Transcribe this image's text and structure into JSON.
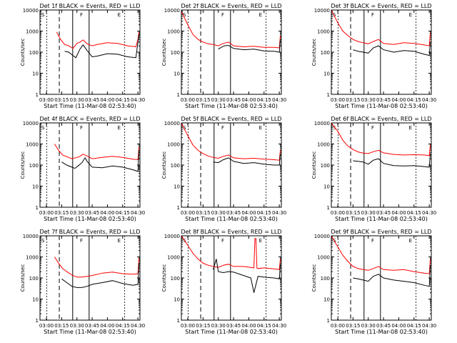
{
  "chart_data": [
    {
      "type": "line",
      "title": "Det 1f BLACK = Events, RED = LLD",
      "ylabel": "Counts/sec",
      "xlabel": "Start Time (11-Mar-08 02:53:40)",
      "ylim": [
        1,
        10000
      ],
      "yscale": "log",
      "xlim": [
        "02:53:40",
        "04:32:00"
      ],
      "xticks": [
        "03:00",
        "03:15",
        "03:30",
        "03:45",
        "04:00",
        "04:15",
        "04:30"
      ],
      "yticks": [
        "1",
        "10",
        "100",
        "1000",
        "10000"
      ],
      "markers": [
        {
          "label": "S",
          "time": "02:53:40"
        },
        {
          "label": "F",
          "time": "03:33:00"
        },
        {
          "label": "E",
          "time": "04:10:00"
        }
      ],
      "series": [
        {
          "color": "#ff0000",
          "x": [
            "03:10",
            "03:14",
            "03:18",
            "03:22",
            "03:26",
            "03:30",
            "03:33",
            "03:36",
            "03:40",
            "03:45",
            "03:50",
            "04:00",
            "04:10",
            "04:20",
            "04:28",
            "04:30",
            "04:31"
          ],
          "y": [
            900,
            400,
            230,
            200,
            150,
            260,
            300,
            380,
            250,
            200,
            230,
            280,
            260,
            200,
            180,
            400,
            900
          ]
        },
        {
          "color": "#000000",
          "x": [
            "03:18",
            "03:22",
            "03:26",
            "03:29",
            "03:33",
            "03:36",
            "03:40",
            "03:45",
            "03:50",
            "04:00",
            "04:10",
            "04:20",
            "04:28",
            "04:30",
            "04:31"
          ],
          "y": [
            110,
            100,
            70,
            55,
            140,
            220,
            120,
            60,
            65,
            85,
            80,
            60,
            55,
            300,
            700
          ]
        }
      ]
    },
    {
      "type": "line",
      "title": "Det 2f BLACK = Events, RED = LLD",
      "ylabel": "Counts/sec",
      "xlabel": "Start Time (11-Mar-08 02:53:40)",
      "ylim": [
        1,
        10000
      ],
      "yscale": "log",
      "xlim": [
        "02:53:40",
        "04:32:00"
      ],
      "xticks": [
        "03:00",
        "03:15",
        "03:30",
        "03:45",
        "04:00",
        "04:15",
        "04:30"
      ],
      "yticks": [
        "1",
        "10",
        "100",
        "1000",
        "10000"
      ],
      "markers": [
        {
          "label": "S",
          "time": "02:53:40"
        },
        {
          "label": "F",
          "time": "03:33:00"
        },
        {
          "label": "E",
          "time": "04:10:00"
        }
      ],
      "series": [
        {
          "color": "#ff0000",
          "x": [
            "02:54",
            "03:00",
            "03:05",
            "03:10",
            "03:15",
            "03:20",
            "03:25",
            "03:30",
            "03:35",
            "03:40",
            "03:45",
            "03:55",
            "04:05",
            "04:15",
            "04:25",
            "04:30",
            "04:31"
          ],
          "y": [
            8000,
            2000,
            700,
            400,
            300,
            250,
            230,
            200,
            260,
            300,
            200,
            180,
            190,
            170,
            170,
            160,
            600
          ]
        },
        {
          "color": "#000000",
          "x": [
            "03:30",
            "03:33",
            "03:36",
            "03:40",
            "03:45",
            "03:55",
            "04:05",
            "04:15",
            "04:25",
            "04:30",
            "04:31"
          ],
          "y": [
            140,
            170,
            200,
            210,
            150,
            130,
            140,
            115,
            110,
            100,
            400
          ]
        }
      ]
    },
    {
      "type": "line",
      "title": "Det 3f BLACK = Events, RED = LLD",
      "ylabel": "Counts/sec",
      "xlabel": "Start Time (11-Mar-08 02:53:40)",
      "ylim": [
        1,
        10000
      ],
      "yscale": "log",
      "xlim": [
        "02:53:40",
        "04:32:00"
      ],
      "xticks": [
        "03:00",
        "03:15",
        "03:30",
        "03:45",
        "04:00",
        "04:15",
        "04:30"
      ],
      "yticks": [
        "1",
        "10",
        "100",
        "1000",
        "10000"
      ],
      "markers": [
        {
          "label": "S",
          "time": "02:53:40"
        },
        {
          "label": "F",
          "time": "03:33:00"
        },
        {
          "label": "E",
          "time": "04:10:00"
        }
      ],
      "series": [
        {
          "color": "#ff0000",
          "x": [
            "02:54",
            "03:00",
            "03:05",
            "03:10",
            "03:15",
            "03:20",
            "03:25",
            "03:30",
            "03:35",
            "03:40",
            "03:45",
            "03:55",
            "04:05",
            "04:15",
            "04:25",
            "04:30",
            "04:31"
          ],
          "y": [
            9000,
            2500,
            1000,
            600,
            400,
            320,
            280,
            250,
            320,
            400,
            260,
            230,
            280,
            260,
            220,
            200,
            800
          ]
        },
        {
          "color": "#000000",
          "x": [
            "03:15",
            "03:20",
            "03:25",
            "03:30",
            "03:35",
            "03:40",
            "03:45",
            "03:55",
            "04:05",
            "04:15",
            "04:25",
            "04:30",
            "04:31"
          ],
          "y": [
            130,
            110,
            100,
            90,
            160,
            200,
            130,
            100,
            120,
            110,
            80,
            70,
            300
          ]
        }
      ]
    },
    {
      "type": "line",
      "title": "Det 4f BLACK = Events, RED = LLD",
      "ylabel": "Counts/sec",
      "xlabel": "Start Time (11-Mar-08 02:53:40)",
      "ylim": [
        1,
        10000
      ],
      "yscale": "log",
      "xlim": [
        "02:53:40",
        "04:32:00"
      ],
      "xticks": [
        "03:00",
        "03:15",
        "03:30",
        "03:45",
        "04:00",
        "04:15",
        "04:30"
      ],
      "yticks": [
        "1",
        "10",
        "100",
        "1000",
        "10000"
      ],
      "markers": [
        {
          "label": "S",
          "time": "02:53:40"
        },
        {
          "label": "F",
          "time": "03:33:00"
        },
        {
          "label": "E",
          "time": "04:10:00"
        }
      ],
      "series": [
        {
          "color": "#ff0000",
          "x": [
            "03:08",
            "03:12",
            "03:16",
            "03:20",
            "03:25",
            "03:30",
            "03:33",
            "03:36",
            "03:40",
            "03:45",
            "03:55",
            "04:05",
            "04:15",
            "04:25",
            "04:30",
            "04:31"
          ],
          "y": [
            1000,
            500,
            300,
            250,
            200,
            230,
            260,
            330,
            270,
            200,
            230,
            260,
            230,
            190,
            180,
            700
          ]
        },
        {
          "color": "#000000",
          "x": [
            "03:15",
            "03:20",
            "03:25",
            "03:28",
            "03:31",
            "03:35",
            "03:38",
            "03:40",
            "03:45",
            "03:55",
            "04:05",
            "04:15",
            "04:25",
            "04:30",
            "04:31"
          ],
          "y": [
            140,
            100,
            80,
            70,
            90,
            130,
            220,
            150,
            80,
            75,
            90,
            80,
            60,
            50,
            500
          ]
        }
      ]
    },
    {
      "type": "line",
      "title": "Det 5f BLACK = Events, RED = LLD",
      "ylabel": "Counts/sec",
      "xlabel": "Start Time (11-Mar-08 02:53:40)",
      "ylim": [
        1,
        10000
      ],
      "yscale": "log",
      "xlim": [
        "02:53:40",
        "04:32:00"
      ],
      "xticks": [
        "03:00",
        "03:15",
        "03:30",
        "03:45",
        "04:00",
        "04:15",
        "04:30"
      ],
      "yticks": [
        "1",
        "10",
        "100",
        "1000",
        "10000"
      ],
      "markers": [
        {
          "label": "S",
          "time": "02:53:40"
        },
        {
          "label": "F",
          "time": "03:33:00"
        },
        {
          "label": "E",
          "time": "04:10:00"
        }
      ],
      "series": [
        {
          "color": "#ff0000",
          "x": [
            "02:54",
            "03:00",
            "03:05",
            "03:10",
            "03:15",
            "03:20",
            "03:25",
            "03:30",
            "03:35",
            "03:40",
            "03:45",
            "03:55",
            "04:05",
            "04:15",
            "04:25",
            "04:30",
            "04:31"
          ],
          "y": [
            9000,
            2500,
            900,
            500,
            350,
            270,
            230,
            210,
            260,
            300,
            220,
            200,
            210,
            190,
            180,
            170,
            500
          ]
        },
        {
          "color": "#000000",
          "x": [
            "03:25",
            "03:30",
            "03:35",
            "03:40",
            "03:45",
            "03:55",
            "04:05",
            "04:15",
            "04:25",
            "04:30",
            "04:31"
          ],
          "y": [
            140,
            130,
            180,
            220,
            150,
            120,
            130,
            110,
            100,
            100,
            350
          ]
        }
      ]
    },
    {
      "type": "line",
      "title": "Det 6f BLACK = Events, RED = LLD",
      "ylabel": "Counts/sec",
      "xlabel": "Start Time (11-Mar-08 02:53:40)",
      "ylim": [
        1,
        10000
      ],
      "yscale": "log",
      "xlim": [
        "02:53:40",
        "04:32:00"
      ],
      "xticks": [
        "03:00",
        "03:15",
        "03:30",
        "03:45",
        "04:00",
        "04:15",
        "04:30"
      ],
      "yticks": [
        "1",
        "10",
        "100",
        "1000",
        "10000"
      ],
      "markers": [
        {
          "label": "S",
          "time": "02:53:40"
        },
        {
          "label": "F",
          "time": "03:33:00"
        },
        {
          "label": "E",
          "time": "04:10:00"
        }
      ],
      "series": [
        {
          "color": "#ff0000",
          "x": [
            "02:54",
            "03:00",
            "03:05",
            "03:10",
            "03:15",
            "03:20",
            "03:25",
            "03:30",
            "03:35",
            "03:40",
            "03:45",
            "03:55",
            "04:05",
            "04:15",
            "04:25",
            "04:30",
            "04:31"
          ],
          "y": [
            9500,
            4000,
            1500,
            800,
            550,
            420,
            370,
            350,
            430,
            500,
            380,
            320,
            300,
            310,
            300,
            280,
            900
          ]
        },
        {
          "color": "#000000",
          "x": [
            "03:15",
            "03:20",
            "03:25",
            "03:30",
            "03:35",
            "03:40",
            "03:45",
            "03:55",
            "04:05",
            "04:15",
            "04:25",
            "04:30",
            "04:31"
          ],
          "y": [
            160,
            150,
            140,
            110,
            170,
            200,
            120,
            95,
            90,
            95,
            85,
            80,
            350
          ]
        }
      ]
    },
    {
      "type": "line",
      "title": "Det 7f BLACK = Events, RED = LLD",
      "ylabel": "Counts/sec",
      "xlabel": "Start Time (11-Mar-08 02:53:40)",
      "ylim": [
        1,
        10000
      ],
      "yscale": "log",
      "xlim": [
        "02:53:40",
        "04:32:00"
      ],
      "xticks": [
        "03:00",
        "03:15",
        "03:30",
        "03:45",
        "04:00",
        "04:15",
        "04:30"
      ],
      "yticks": [
        "1",
        "10",
        "100",
        "1000",
        "10000"
      ],
      "markers": [
        {
          "label": "S",
          "time": "02:53:40"
        },
        {
          "label": "F",
          "time": "03:33:00"
        },
        {
          "label": "E",
          "time": "04:10:00"
        }
      ],
      "series": [
        {
          "color": "#ff0000",
          "x": [
            "03:08",
            "03:12",
            "03:16",
            "03:20",
            "03:25",
            "03:30",
            "03:35",
            "03:40",
            "03:45",
            "03:55",
            "04:05",
            "04:15",
            "04:25",
            "04:30",
            "04:31"
          ],
          "y": [
            1000,
            500,
            280,
            200,
            140,
            110,
            110,
            120,
            130,
            170,
            190,
            160,
            150,
            160,
            900
          ]
        },
        {
          "color": "#000000",
          "x": [
            "03:15",
            "03:20",
            "03:25",
            "03:30",
            "03:35",
            "03:40",
            "03:45",
            "03:55",
            "04:05",
            "04:15",
            "04:25",
            "04:30",
            "04:31"
          ],
          "y": [
            90,
            60,
            40,
            35,
            35,
            40,
            50,
            60,
            75,
            55,
            45,
            50,
            500
          ]
        }
      ]
    },
    {
      "type": "line",
      "title": "Det 8f BLACK = Events, RED = LLD",
      "ylabel": "Counts/sec",
      "xlabel": "Start Time (11-Mar-08 02:53:40)",
      "ylim": [
        1,
        10000
      ],
      "yscale": "log",
      "xlim": [
        "02:53:40",
        "04:32:00"
      ],
      "xticks": [
        "03:00",
        "03:15",
        "03:30",
        "03:45",
        "04:00",
        "04:15",
        "04:30"
      ],
      "yticks": [
        "1",
        "10",
        "100",
        "1000",
        "10000"
      ],
      "markers": [
        {
          "label": "S",
          "time": "02:53:40"
        },
        {
          "label": "F",
          "time": "03:33:00"
        },
        {
          "label": "E",
          "time": "04:10:00"
        }
      ],
      "series": [
        {
          "color": "#ff0000",
          "x": [
            "02:54",
            "03:00",
            "03:05",
            "03:10",
            "03:15",
            "03:20",
            "03:25",
            "03:30",
            "03:35",
            "03:40",
            "03:45",
            "03:55",
            "04:05",
            "04:06",
            "04:07",
            "04:08",
            "04:09",
            "04:15",
            "04:25",
            "04:30",
            "04:31"
          ],
          "y": [
            9500,
            3500,
            1500,
            800,
            500,
            400,
            350,
            320,
            400,
            450,
            350,
            350,
            300,
            7500,
            7500,
            300,
            280,
            300,
            270,
            250,
            800
          ]
        },
        {
          "color": "#000000",
          "x": [
            "03:25",
            "03:28",
            "03:30",
            "03:35",
            "03:40",
            "03:45",
            "03:55",
            "04:02",
            "04:05",
            "04:09",
            "04:15",
            "04:25",
            "04:30",
            "04:31"
          ],
          "y": [
            250,
            800,
            200,
            180,
            200,
            190,
            130,
            100,
            20,
            120,
            110,
            100,
            90,
            450
          ]
        }
      ]
    },
    {
      "type": "line",
      "title": "Det 9f BLACK = Events, RED = LLD",
      "ylabel": "Counts/sec",
      "xlabel": "Start Time (11-Mar-08 02:53:40)",
      "ylim": [
        1,
        10000
      ],
      "yscale": "log",
      "xlim": [
        "02:53:40",
        "04:32:00"
      ],
      "xticks": [
        "03:00",
        "03:15",
        "03:30",
        "03:45",
        "04:00",
        "04:15",
        "04:30"
      ],
      "yticks": [
        "1",
        "10",
        "100",
        "1000",
        "10000"
      ],
      "markers": [
        {
          "label": "S",
          "time": "02:53:40"
        },
        {
          "label": "F",
          "time": "03:33:00"
        },
        {
          "label": "E",
          "time": "04:10:00"
        }
      ],
      "series": [
        {
          "color": "#ff0000",
          "x": [
            "02:54",
            "03:00",
            "03:05",
            "03:10",
            "03:15",
            "03:20",
            "03:25",
            "03:30",
            "03:35",
            "03:40",
            "03:45",
            "03:55",
            "04:05",
            "04:15",
            "04:25",
            "04:30",
            "04:31"
          ],
          "y": [
            9500,
            3000,
            1200,
            600,
            350,
            280,
            250,
            230,
            280,
            350,
            250,
            230,
            250,
            200,
            170,
            160,
            800
          ]
        },
        {
          "color": "#000000",
          "x": [
            "03:15",
            "03:20",
            "03:25",
            "03:30",
            "03:35",
            "03:40",
            "03:45",
            "03:55",
            "04:05",
            "04:15",
            "04:25",
            "04:30",
            "04:31"
          ],
          "y": [
            100,
            90,
            80,
            70,
            120,
            150,
            100,
            80,
            70,
            60,
            45,
            40,
            400
          ]
        }
      ]
    }
  ]
}
